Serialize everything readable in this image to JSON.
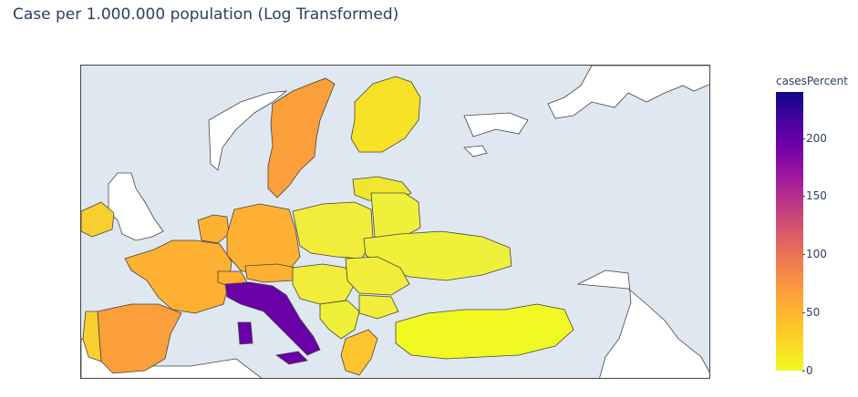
{
  "title": "Case per 1.000.000 population (Log Transformed)",
  "colorbar": {
    "title": "casesPercent",
    "range": [
      0,
      238
    ],
    "ticks": [
      "0",
      "50",
      "100",
      "150",
      "200"
    ],
    "scale": "Plasma (reversed)",
    "colors": [
      "#0d0887",
      "#7201a8",
      "#bd3786",
      "#ed7953",
      "#fdca26",
      "#f0f921"
    ]
  },
  "map": {
    "region": "Europe",
    "land_color": "#ffffff",
    "ocean_color": "#dfe8f1",
    "border_color": "#444444"
  },
  "chart_data": {
    "type": "choropleth",
    "title": "Case per 1.000.000 population (Log Transformed)",
    "color_variable": "casesPercent",
    "color_range": [
      0,
      238
    ],
    "countries": [
      {
        "name": "Italy",
        "casesPercent": 235
      },
      {
        "name": "Sweden",
        "casesPercent": 45
      },
      {
        "name": "Spain",
        "casesPercent": 45
      },
      {
        "name": "France",
        "casesPercent": 38
      },
      {
        "name": "Germany",
        "casesPercent": 34
      },
      {
        "name": "Austria",
        "casesPercent": 34
      },
      {
        "name": "Switzerland",
        "casesPercent": 34
      },
      {
        "name": "Norway",
        "casesPercent": 48
      },
      {
        "name": "Finland",
        "casesPercent": 12
      },
      {
        "name": "Ireland",
        "casesPercent": 15
      },
      {
        "name": "Netherlands",
        "casesPercent": 35
      },
      {
        "name": "Belgium",
        "casesPercent": 35
      },
      {
        "name": "Portugal",
        "casesPercent": 14
      },
      {
        "name": "Greece",
        "casesPercent": 18
      },
      {
        "name": "Bulgaria",
        "casesPercent": 6
      },
      {
        "name": "Romania",
        "casesPercent": 6
      },
      {
        "name": "Poland",
        "casesPercent": 4
      },
      {
        "name": "Ukraine",
        "casesPercent": 4
      },
      {
        "name": "Belarus",
        "casesPercent": 3
      },
      {
        "name": "Turkey",
        "casesPercent": 5
      },
      {
        "name": "Hungary",
        "casesPercent": 5
      },
      {
        "name": "Serbia",
        "casesPercent": 6
      },
      {
        "name": "Baltic states",
        "casesPercent": 8
      }
    ]
  }
}
